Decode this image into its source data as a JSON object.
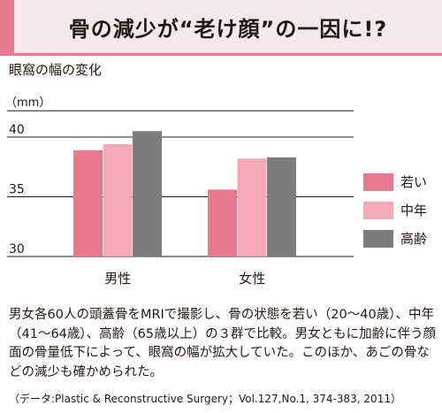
{
  "banner": {
    "title": "骨の減少が“老け顔”の一因に!?",
    "accent_color": "#e8798f",
    "background_color": "#f3e9ec"
  },
  "chart_data": {
    "type": "bar",
    "title": "眼窩の幅の変化",
    "ylabel": "（mm）",
    "xlabel": "",
    "categories": [
      "男性",
      "女性"
    ],
    "series": [
      {
        "name": "若い",
        "values": [
          38.9,
          35.6
        ],
        "color": "#e8798f"
      },
      {
        "name": "中年",
        "values": [
          39.4,
          38.2
        ],
        "color": "#f4a9b6"
      },
      {
        "name": "高齢",
        "values": [
          40.5,
          38.3
        ],
        "color": "#7d7d7d"
      }
    ],
    "ylim": [
      30,
      42.2
    ],
    "yticks": [
      30,
      35,
      40
    ],
    "grid": true,
    "legend_position": "right"
  },
  "caption": "男女各60人の頭蓋骨をMRIで撮影し、骨の状態を若い（20〜40歳）、中年（41〜64歳）、高齢（65歳以上）の３群で比較。男女ともに加齢に伴う顔面の骨量低下によって、眼窩の幅が拡大していた。このほか、あごの骨などの減少も確かめられた。",
  "source": "（データ:Plastic & Reconstructive Surgery；Vol.127,No.1, 374-383, 2011）"
}
